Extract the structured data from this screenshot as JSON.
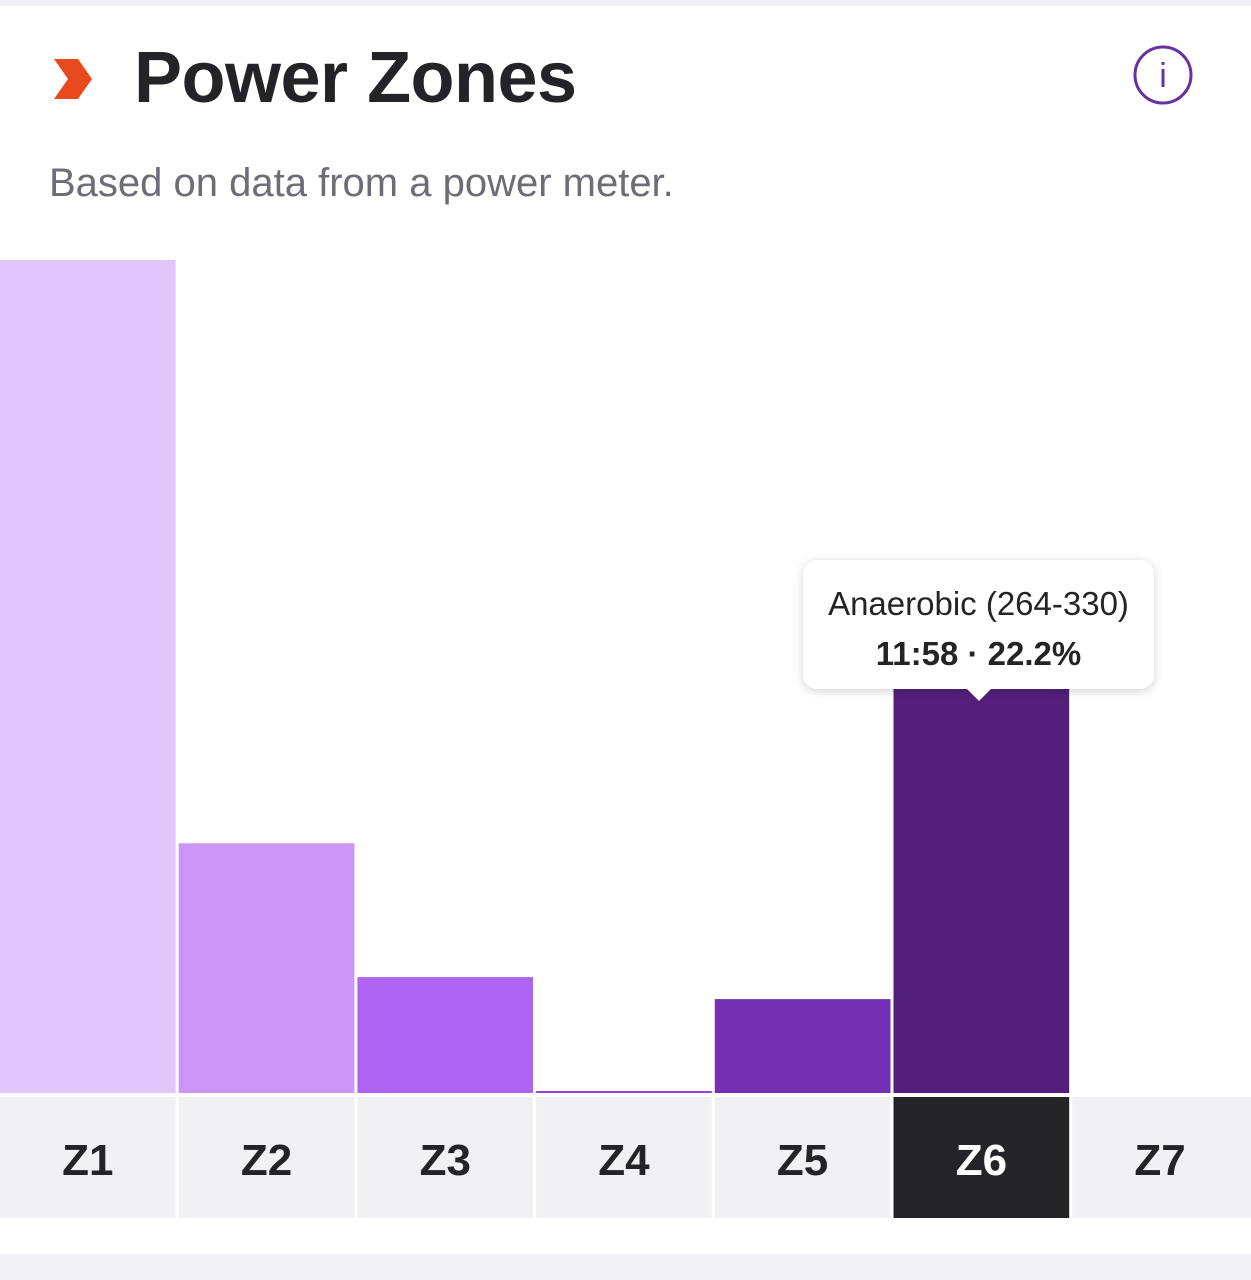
{
  "header": {
    "title": "Power Zones",
    "subtitle": "Based on data from a power meter.",
    "chevron_icon": "chevron-right-icon",
    "info_icon": "info-icon",
    "info_glyph": "i"
  },
  "colors": {
    "chevron": "#e8491d",
    "info": "#6a2fa0",
    "z1": "#e2c6fb",
    "z2": "#cb95f6",
    "z3": "#b064f2",
    "z4": "#9540df",
    "z5": "#7430b2",
    "z6": "#531f7b",
    "z7": "#3e175c",
    "label_bg": "#f1f0f5",
    "label_selected_bg": "#242428",
    "label_text": "#242428",
    "label_selected_text": "#ffffff"
  },
  "tooltip": {
    "zone": "Anaerobic (264-330)",
    "stats": "11:58 · 22.2%"
  },
  "chart_data": {
    "type": "bar",
    "categories": [
      "Z1",
      "Z2",
      "Z3",
      "Z4",
      "Z5",
      "Z6",
      "Z7"
    ],
    "values": [
      41.7,
      12.5,
      5.8,
      0.1,
      4.7,
      22.2,
      0
    ],
    "selected": "Z6",
    "ylim": [
      0,
      41.7
    ],
    "grid": false,
    "legend": "none"
  }
}
